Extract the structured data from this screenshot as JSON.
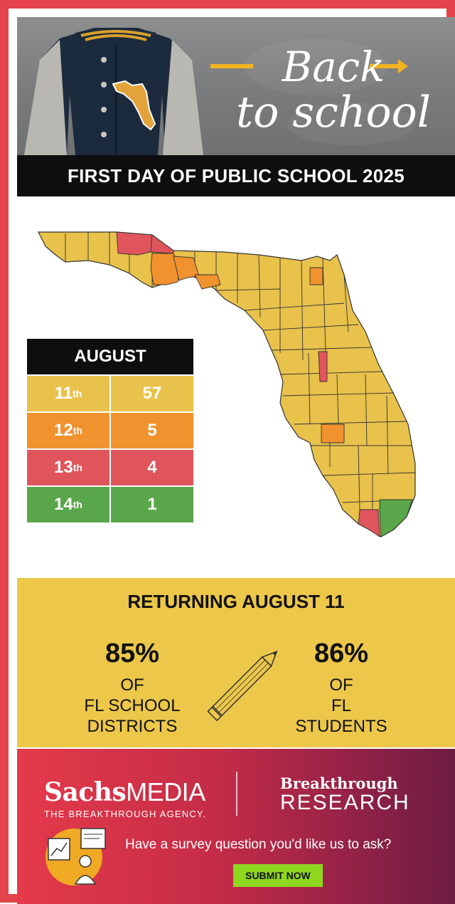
{
  "hero": {
    "title_line1": "Back",
    "title_line2": "to school"
  },
  "banner": {
    "text": "FIRST DAY OF PUBLIC SCHOOL 2025"
  },
  "legend": {
    "header": "AUGUST",
    "rows": [
      {
        "day": "11",
        "suffix": "th",
        "count": "57",
        "color": "#e9c24c"
      },
      {
        "day": "12",
        "suffix": "th",
        "count": "5",
        "color": "#f0922e"
      },
      {
        "day": "13",
        "suffix": "th",
        "count": "4",
        "color": "#e0555c"
      },
      {
        "day": "14",
        "suffix": "th",
        "count": "1",
        "color": "#5aa64a"
      }
    ]
  },
  "stats": {
    "title": "RETURNING AUGUST 11",
    "left": {
      "pct": "85%",
      "lines": [
        "OF",
        "FL SCHOOL",
        "DISTRICTS"
      ]
    },
    "right": {
      "pct": "86%",
      "lines": [
        "OF",
        "FL",
        "STUDENTS"
      ]
    }
  },
  "footer": {
    "sachs_bold": "Sachs",
    "sachs_media": "MEDIA",
    "sachs_tag": "THE BREAKTHROUGH AGENCY.",
    "br_line1": "Breakthrough",
    "br_line2": "RESEARCH",
    "question": "Have a survey question you'd like us to ask?",
    "submit_label": "SUBMIT NOW"
  },
  "colors": {
    "frame": "#e6444c",
    "aug11": "#e9c24c",
    "aug12": "#f0922e",
    "aug13": "#e0555c",
    "aug14": "#5aa64a",
    "stats_bg": "#ecc74a",
    "submit": "#8fd61f"
  },
  "icons": [
    "varsity-jacket",
    "florida-patch",
    "pencil-icon",
    "survey-illustration"
  ]
}
